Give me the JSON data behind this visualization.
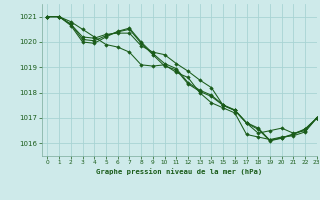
{
  "title": "Graphe pression niveau de la mer (hPa)",
  "background_color": "#ceeaea",
  "grid_color": "#a8d4d4",
  "line_color": "#1a5c1a",
  "marker_color": "#1a5c1a",
  "xlim": [
    -0.5,
    23
  ],
  "ylim": [
    1015.5,
    1021.5
  ],
  "xticks": [
    0,
    1,
    2,
    3,
    4,
    5,
    6,
    7,
    8,
    9,
    10,
    11,
    12,
    13,
    14,
    15,
    16,
    17,
    18,
    19,
    20,
    21,
    22,
    23
  ],
  "yticks": [
    1016,
    1017,
    1018,
    1019,
    1020,
    1021
  ],
  "series": [
    [
      1021.0,
      1021.0,
      1020.8,
      1020.5,
      1020.2,
      1019.9,
      1019.8,
      1019.6,
      1019.1,
      1019.05,
      1019.1,
      1018.8,
      1018.6,
      1018.0,
      1017.6,
      1017.4,
      1017.2,
      1016.35,
      1016.25,
      1016.15,
      1016.25,
      1016.3,
      1016.45,
      1017.0
    ],
    [
      1021.0,
      1021.0,
      1020.7,
      1020.2,
      1020.15,
      1020.3,
      1020.35,
      1020.35,
      1019.85,
      1019.6,
      1019.5,
      1019.15,
      1018.85,
      1018.5,
      1018.2,
      1017.5,
      1017.3,
      1016.8,
      1016.4,
      1016.5,
      1016.6,
      1016.4,
      1016.5,
      1017.0
    ],
    [
      1021.0,
      1021.0,
      1020.7,
      1020.1,
      1020.05,
      1020.25,
      1020.4,
      1020.5,
      1019.95,
      1019.5,
      1019.05,
      1018.9,
      1018.35,
      1018.05,
      1017.85,
      1017.5,
      1017.3,
      1016.8,
      1016.55,
      1016.1,
      1016.2,
      1016.35,
      1016.55,
      1017.0
    ],
    [
      1021.0,
      1021.0,
      1020.65,
      1020.0,
      1019.95,
      1020.2,
      1020.42,
      1020.55,
      1020.0,
      1019.55,
      1019.15,
      1018.95,
      1018.4,
      1018.1,
      1017.9,
      1017.52,
      1017.32,
      1016.82,
      1016.6,
      1016.12,
      1016.22,
      1016.37,
      1016.57,
      1017.0
    ]
  ]
}
